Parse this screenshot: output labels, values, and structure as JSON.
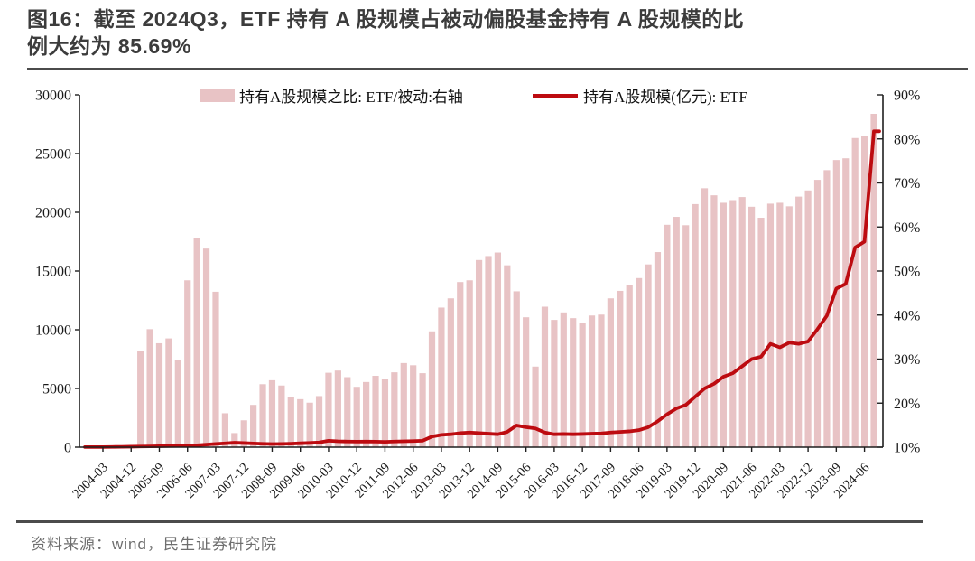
{
  "figure": {
    "number_and_caption_line1": "图16：截至 2024Q3，ETF 持有 A 股规模占被动偏股基金持有 A 股规模的比",
    "number_and_caption_line2": "例大约为 85.69%",
    "source": "资料来源：wind，民生证券研究院"
  },
  "legend": {
    "bar_series_label": "持有A股规模之比: ETF/被动:右轴",
    "line_series_label": "持有A股规模(亿元): ETF"
  },
  "colors": {
    "bar_fill": "#e8c3c5",
    "line_stroke": "#bd0b10",
    "axis": "#1f1f1f",
    "title_text": "#3c3c3c",
    "source_text": "#6e6e6e",
    "rule": "#4b4b4b"
  },
  "chart_data": {
    "type": "bar+line",
    "x": [
      "2004-03",
      "2004-06",
      "2004-09",
      "2004-12",
      "2005-03",
      "2005-06",
      "2005-09",
      "2005-12",
      "2006-03",
      "2006-06",
      "2006-09",
      "2006-12",
      "2007-03",
      "2007-06",
      "2007-09",
      "2007-12",
      "2008-03",
      "2008-06",
      "2008-09",
      "2008-12",
      "2009-03",
      "2009-06",
      "2009-09",
      "2009-12",
      "2010-03",
      "2010-06",
      "2010-09",
      "2010-12",
      "2011-03",
      "2011-06",
      "2011-09",
      "2011-12",
      "2012-03",
      "2012-06",
      "2012-09",
      "2012-12",
      "2013-03",
      "2013-06",
      "2013-09",
      "2013-12",
      "2014-03",
      "2014-06",
      "2014-09",
      "2014-12",
      "2015-03",
      "2015-06",
      "2015-09",
      "2015-12",
      "2016-03",
      "2016-06",
      "2016-09",
      "2016-12",
      "2017-03",
      "2017-06",
      "2017-09",
      "2017-12",
      "2018-03",
      "2018-06",
      "2018-09",
      "2018-12",
      "2019-03",
      "2019-06",
      "2019-09",
      "2019-12",
      "2020-03",
      "2020-06",
      "2020-09",
      "2020-12",
      "2021-03",
      "2021-06",
      "2021-09",
      "2021-12",
      "2022-03",
      "2022-06",
      "2022-09",
      "2022-12",
      "2023-03",
      "2023-06",
      "2023-09",
      "2023-12",
      "2024-03",
      "2024-06",
      "2024-09"
    ],
    "x_tick_labels": [
      "2004-03",
      "2004-12",
      "2005-09",
      "2006-06",
      "2007-03",
      "2007-12",
      "2008-09",
      "2009-06",
      "2010-03",
      "2010-12",
      "2011-09",
      "2012-06",
      "2013-03",
      "2013-12",
      "2014-09",
      "2015-06",
      "2016-03",
      "2016-12",
      "2017-09",
      "2018-06",
      "2019-03",
      "2019-12",
      "2020-09",
      "2021-06",
      "2022-03",
      "2022-12",
      "2023-09",
      "2024-06"
    ],
    "series": [
      {
        "name": "持有A股规模之比: ETF/被动:右轴",
        "type": "bar",
        "axis": "right",
        "unit": "%",
        "values": [
          10.1,
          10.1,
          10.2,
          10.2,
          31.9,
          36.8,
          33.6,
          34.7,
          29.8,
          47.9,
          57.5,
          55.1,
          45.3,
          17.7,
          13.2,
          16.1,
          19.6,
          24.3,
          25.2,
          24.0,
          21.4,
          20.9,
          20.1,
          21.6,
          26.9,
          27.4,
          25.9,
          23.7,
          24.8,
          26.2,
          25.5,
          27.0,
          29.1,
          28.6,
          26.8,
          36.3,
          41.7,
          43.8,
          47.5,
          47.9,
          52.5,
          53.4,
          54.2,
          51.3,
          45.4,
          39.5,
          28.3,
          41.9,
          38.9,
          40.6,
          39.3,
          38.2,
          39.9,
          40.1,
          43.8,
          45.5,
          46.9,
          48.4,
          51.5,
          54.3,
          60.5,
          62.3,
          60.4,
          65.2,
          68.8,
          67.2,
          65.5,
          66.1,
          66.8,
          64.6,
          62.1,
          65.3,
          65.5,
          64.7,
          66.9,
          68.3,
          70.7,
          72.9,
          75.2,
          75.6,
          80.2,
          80.7,
          85.69
        ]
      },
      {
        "name": "持有A股规模(亿元): ETF",
        "type": "line",
        "axis": "left",
        "unit": "亿元",
        "values": [
          10,
          20,
          30,
          45,
          60,
          70,
          80,
          100,
          110,
          130,
          160,
          220,
          280,
          330,
          380,
          350,
          320,
          290,
          270,
          280,
          300,
          330,
          360,
          400,
          550,
          500,
          480,
          470,
          480,
          470,
          450,
          480,
          500,
          520,
          550,
          900,
          1050,
          1100,
          1200,
          1250,
          1200,
          1150,
          1100,
          1300,
          1850,
          1700,
          1600,
          1250,
          1100,
          1120,
          1100,
          1120,
          1150,
          1170,
          1250,
          1300,
          1350,
          1450,
          1700,
          2200,
          2800,
          3300,
          3600,
          4300,
          5000,
          5400,
          6000,
          6300,
          6900,
          7500,
          7700,
          8800,
          8500,
          8900,
          8800,
          9000,
          10050,
          11200,
          13500,
          13900,
          17000,
          17500,
          26900
        ]
      }
    ],
    "left_axis": {
      "min": 0,
      "max": 30000,
      "step": 5000,
      "tick_labels": [
        "0",
        "5000",
        "10000",
        "15000",
        "20000",
        "25000",
        "30000"
      ]
    },
    "right_axis": {
      "min": 10,
      "max": 90,
      "step": 10,
      "tick_labels": [
        "10%",
        "20%",
        "30%",
        "40%",
        "50%",
        "60%",
        "70%",
        "80%",
        "90%"
      ]
    },
    "grid": false,
    "legend_position": "top"
  }
}
